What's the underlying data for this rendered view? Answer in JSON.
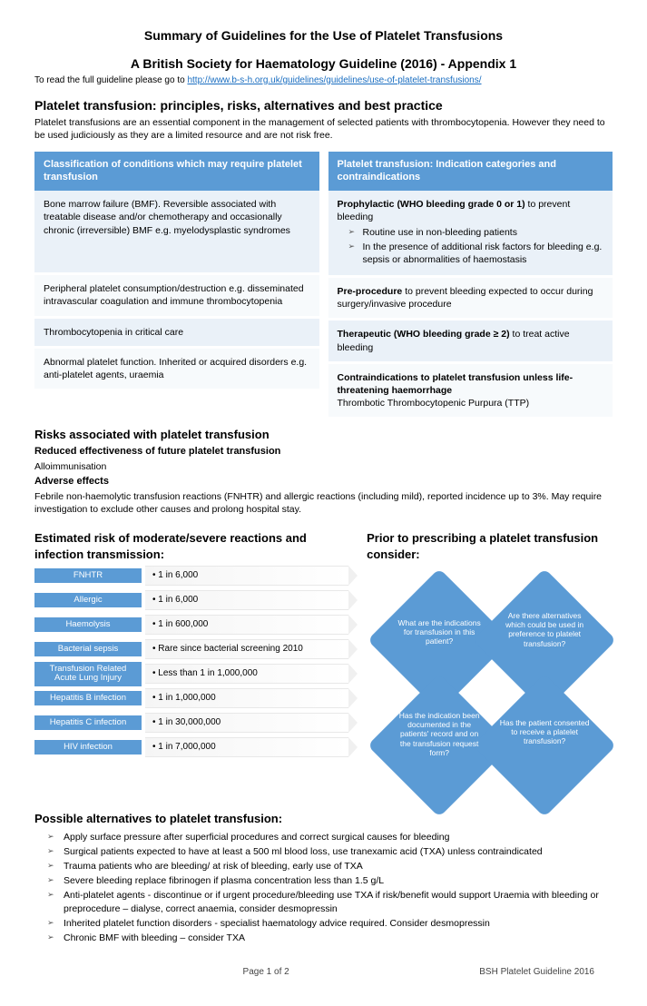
{
  "header": {
    "title1": "Summary of Guidelines for the Use of Platelet Transfusions",
    "title2": "A British Society for Haematology Guideline (2016) -  Appendix 1",
    "intro_prefix": "To read the full guideline please go to ",
    "link_text": "http://www.b-s-h.org.uk/guidelines/guidelines/use-of-platelet-transfusions/"
  },
  "principles": {
    "heading": "Platelet transfusion: principles, risks, alternatives and best practice",
    "body": "Platelet transfusions are an essential component in the management of selected patients with thrombocytopenia. However they need to be used judiciously as they are a limited resource and are not risk free."
  },
  "table": {
    "left_header": "Classification of conditions which may require platelet transfusion",
    "right_header": "Platelet transfusion: Indication categories and contraindications",
    "left_rows": [
      "Bone marrow failure (BMF).  Reversible associated with treatable disease and/or chemotherapy and occasionally chronic (irreversible) BMF e.g. myelodysplastic syndromes",
      "Peripheral platelet consumption/destruction e.g. disseminated intravascular coagulation and immune thrombocytopenia",
      "Thrombocytopenia in critical care",
      "Abnormal platelet function. Inherited or acquired disorders e.g. anti-platelet agents, uraemia"
    ],
    "right_row1_b": "Prophylactic (WHO bleeding grade 0 or 1)",
    "right_row1_rest": " to prevent bleeding",
    "right_row1_items": [
      "Routine use in non-bleeding patients",
      "In the presence of additional risk factors for bleeding e.g. sepsis or abnormalities of haemostasis"
    ],
    "right_row2_b": "Pre-procedure",
    "right_row2_rest": " to prevent bleeding expected to occur during surgery/invasive procedure",
    "right_row3_b": "Therapeutic (WHO bleeding grade ≥ 2)",
    "right_row3_rest": "  to treat active bleeding",
    "right_row4_b": "Contraindications to platelet transfusion unless life-threatening haemorrhage",
    "right_row4_rest": "Thrombotic Thrombocytopenic Purpura (TTP)"
  },
  "risks": {
    "heading": "Risks associated with platelet transfusion",
    "sub1": "Reduced effectiveness of future platelet transfusion",
    "line1": "Alloimmunisation",
    "sub2": "Adverse effects",
    "body": "Febrile non-haemolytic transfusion reactions (FNHTR) and allergic reactions (including mild), reported incidence up to 3%. May require investigation to exclude other causes and prolong hospital stay."
  },
  "estimated": {
    "heading": "Estimated risk of moderate/severe reactions and infection transmission:",
    "rows": [
      {
        "label": "FNHTR",
        "value": "1 in 6,000"
      },
      {
        "label": "Allergic",
        "value": "1 in 6,000"
      },
      {
        "label": "Haemolysis",
        "value": "1 in 600,000"
      },
      {
        "label": "Bacterial sepsis",
        "value": "Rare since bacterial screening 2010"
      },
      {
        "label": "Transfusion Related Acute Lung Injury",
        "value": "Less than 1 in 1,000,000"
      },
      {
        "label": "Hepatitis B infection",
        "value": "1 in 1,000,000"
      },
      {
        "label": "Hepatitis C infection",
        "value": "1 in 30,000,000"
      },
      {
        "label": "HIV infection",
        "value": "1 in 7,000,000"
      }
    ]
  },
  "prior": {
    "heading": "Prior to prescribing a platelet transfusion consider:",
    "q1": "What are the indications for transfusion in this patient?",
    "q2": "Are there alternatives which could be used in preference to platelet transfusion?",
    "q3": "Has the indication been documented in the patients' record and on the transfusion request form?",
    "q4": "Has the patient consented to receive a platelet transfusion?"
  },
  "alternatives": {
    "heading": "Possible alternatives to platelet transfusion:",
    "items": [
      "Apply surface pressure after superficial procedures and correct surgical causes for bleeding",
      "Surgical patients expected to have at least a 500 ml blood loss, use tranexamic acid (TXA) unless contraindicated",
      "Trauma patients who are bleeding/ at risk of bleeding, early use of TXA",
      "Severe bleeding replace fibrinogen if plasma concentration less than 1.5 g/L",
      "Anti-platelet agents - discontinue or if urgent procedure/bleeding use TXA if risk/benefit would support Uraemia with bleeding or preprocedure – dialyse, correct anaemia, consider desmopressin",
      "Inherited platelet function disorders - specialist haematology advice required. Consider desmopressin",
      "Chronic BMF with bleeding – consider TXA"
    ]
  },
  "footer": {
    "page": "Page 1 of 2",
    "right": "BSH Platelet Guideline 2016"
  },
  "colors": {
    "accent": "#5b9bd5"
  }
}
